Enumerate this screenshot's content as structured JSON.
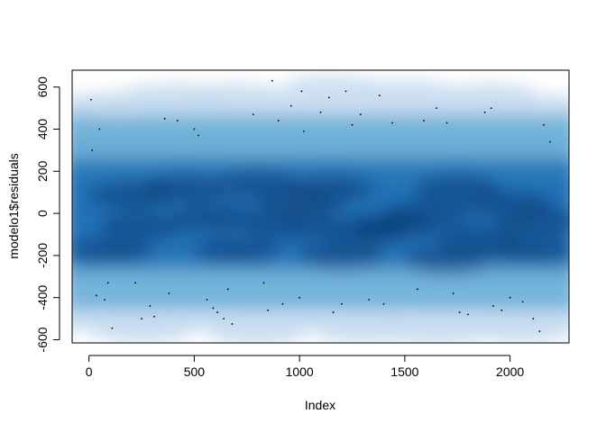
{
  "chart_data": {
    "type": "scatter",
    "render": "smoothScatter",
    "title": "",
    "xlabel": "Index",
    "ylabel": "modelo1$residuals",
    "xlim": [
      -80,
      2280
    ],
    "ylim": [
      -615,
      680
    ],
    "x_ticks": [
      0,
      500,
      1000,
      1500,
      2000
    ],
    "x_tick_labels": [
      "0",
      "500",
      "1000",
      "1500",
      "2000"
    ],
    "y_ticks": [
      -600,
      -400,
      -200,
      0,
      200,
      400,
      600
    ],
    "y_tick_labels": [
      "-600",
      "-400",
      "-200",
      "0",
      "200",
      "400",
      "600"
    ],
    "n_obs_approx": 2230,
    "grid": false,
    "legend": "none",
    "density_colors": [
      "#ffffff",
      "#c6dbef",
      "#6baed6",
      "#2171b5",
      "#08306b"
    ],
    "outlier_points": [
      {
        "x": 10,
        "y": 540
      },
      {
        "x": 15,
        "y": 300
      },
      {
        "x": 50,
        "y": 400
      },
      {
        "x": 35,
        "y": -390
      },
      {
        "x": 75,
        "y": -410
      },
      {
        "x": 90,
        "y": -330
      },
      {
        "x": 110,
        "y": -545
      },
      {
        "x": 220,
        "y": -330
      },
      {
        "x": 250,
        "y": -500
      },
      {
        "x": 290,
        "y": -440
      },
      {
        "x": 310,
        "y": -490
      },
      {
        "x": 360,
        "y": 450
      },
      {
        "x": 380,
        "y": -380
      },
      {
        "x": 420,
        "y": 440
      },
      {
        "x": 500,
        "y": 400
      },
      {
        "x": 520,
        "y": 370
      },
      {
        "x": 560,
        "y": -410
      },
      {
        "x": 590,
        "y": -450
      },
      {
        "x": 610,
        "y": -470
      },
      {
        "x": 640,
        "y": -500
      },
      {
        "x": 660,
        "y": -360
      },
      {
        "x": 680,
        "y": -525
      },
      {
        "x": 780,
        "y": 470
      },
      {
        "x": 830,
        "y": -330
      },
      {
        "x": 850,
        "y": -460
      },
      {
        "x": 870,
        "y": 630
      },
      {
        "x": 900,
        "y": 440
      },
      {
        "x": 920,
        "y": -430
      },
      {
        "x": 960,
        "y": 510
      },
      {
        "x": 1000,
        "y": -400
      },
      {
        "x": 1010,
        "y": 580
      },
      {
        "x": 1020,
        "y": 390
      },
      {
        "x": 1100,
        "y": 480
      },
      {
        "x": 1140,
        "y": 550
      },
      {
        "x": 1160,
        "y": -470
      },
      {
        "x": 1200,
        "y": -430
      },
      {
        "x": 1220,
        "y": 580
      },
      {
        "x": 1250,
        "y": 420
      },
      {
        "x": 1290,
        "y": 470
      },
      {
        "x": 1330,
        "y": -410
      },
      {
        "x": 1380,
        "y": 560
      },
      {
        "x": 1400,
        "y": -430
      },
      {
        "x": 1440,
        "y": 430
      },
      {
        "x": 1560,
        "y": -360
      },
      {
        "x": 1590,
        "y": 440
      },
      {
        "x": 1650,
        "y": 500
      },
      {
        "x": 1700,
        "y": 430
      },
      {
        "x": 1730,
        "y": -380
      },
      {
        "x": 1760,
        "y": -470
      },
      {
        "x": 1800,
        "y": -480
      },
      {
        "x": 1880,
        "y": 480
      },
      {
        "x": 1910,
        "y": 500
      },
      {
        "x": 1920,
        "y": -440
      },
      {
        "x": 1960,
        "y": -460
      },
      {
        "x": 2000,
        "y": -400
      },
      {
        "x": 2060,
        "y": -420
      },
      {
        "x": 2110,
        "y": -500
      },
      {
        "x": 2140,
        "y": -560
      },
      {
        "x": 2160,
        "y": 420
      },
      {
        "x": 2190,
        "y": 340
      }
    ]
  }
}
